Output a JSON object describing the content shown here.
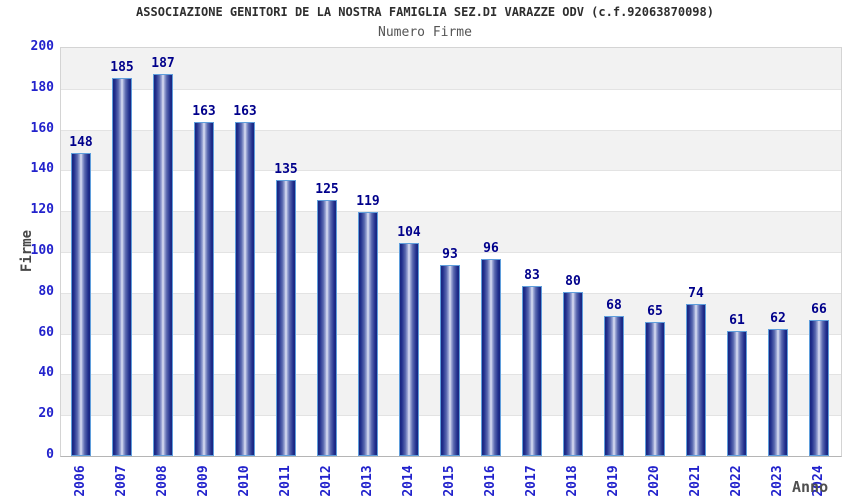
{
  "chart_data": {
    "type": "bar",
    "title": "ASSOCIAZIONE GENITORI DE LA NOSTRA FAMIGLIA SEZ.DI VARAZZE ODV (c.f.92063870098)",
    "subtitle": "Numero Firme",
    "xlabel": "Anno",
    "ylabel": "Firme",
    "categories": [
      "2006",
      "2007",
      "2008",
      "2009",
      "2010",
      "2011",
      "2012",
      "2013",
      "2014",
      "2015",
      "2016",
      "2017",
      "2018",
      "2019",
      "2020",
      "2021",
      "2022",
      "2023",
      "2024"
    ],
    "values": [
      148,
      185,
      187,
      163,
      163,
      135,
      125,
      119,
      104,
      93,
      96,
      83,
      80,
      68,
      65,
      74,
      61,
      62,
      66
    ],
    "ylim": [
      0,
      200
    ],
    "yticks": [
      0,
      20,
      40,
      60,
      80,
      100,
      120,
      140,
      160,
      180,
      200
    ],
    "value_labels_shown": true,
    "legend": "none",
    "grid": "alternating horizontal bands every 20 units",
    "x_tick_rotation_deg": -90
  },
  "style": {
    "tick_label_color": "#2222cc",
    "value_label_color": "#00008b",
    "axis_title_color": "#474747",
    "title_color": "#2e2e2e",
    "subtitle_color": "#555555",
    "band_gray": "#f2f2f2",
    "band_white": "#ffffff",
    "plot_border_color": "#d4d4d4",
    "bar_border_color": "#5f9edc",
    "bar_dark": "#19267f",
    "bar_mid": "#5a69b0",
    "bar_highlight": "#e2e6f5"
  }
}
